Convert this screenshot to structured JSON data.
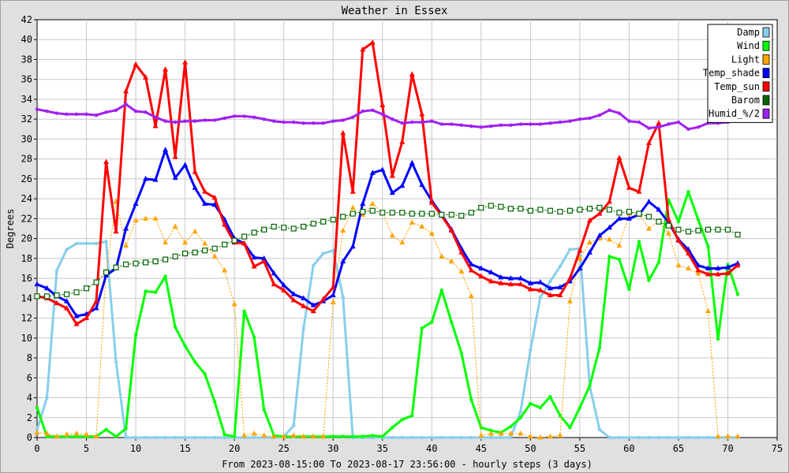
{
  "chart_data": {
    "type": "line",
    "title": "Weather in Essex",
    "xlabel": "From 2023-08-15:00 To 2023-08-17 23:56:00 - hourly steps (3 days)",
    "ylabel": "Degrees",
    "xlim": [
      0,
      75
    ],
    "ylim": [
      0,
      42
    ],
    "x_ticks": [
      0,
      5,
      10,
      15,
      20,
      25,
      30,
      35,
      40,
      45,
      50,
      55,
      60,
      65,
      70,
      75
    ],
    "y_ticks": [
      0,
      2,
      4,
      6,
      8,
      10,
      12,
      14,
      16,
      18,
      20,
      22,
      24,
      26,
      28,
      30,
      32,
      34,
      36,
      38,
      40,
      42
    ],
    "grid": true,
    "legend_position": "top-right",
    "series": [
      {
        "name": "Damp",
        "color": "#87ceeb",
        "marker": "point",
        "dotted": false,
        "width": 3,
        "values": [
          0.8,
          4.0,
          16.8,
          18.9,
          19.5,
          19.5,
          19.5,
          19.7,
          7.6,
          0,
          0,
          0,
          0,
          0,
          0,
          0,
          0,
          0,
          0,
          0,
          0,
          0,
          0,
          0,
          0,
          0.1,
          1.2,
          11.0,
          17.3,
          18.5,
          18.8,
          14.1,
          0,
          0,
          0,
          0,
          0,
          0,
          0,
          0,
          0,
          0,
          0,
          0,
          0,
          0,
          0,
          0,
          0,
          2.6,
          8.8,
          14.1,
          15.7,
          17.2,
          18.9,
          19.0,
          5.2,
          0.8,
          0,
          0,
          0,
          0,
          0,
          0,
          0,
          0,
          0,
          0,
          0,
          0,
          0,
          0
        ]
      },
      {
        "name": "Wind",
        "color": "#00ff00",
        "marker": "point",
        "dotted": false,
        "width": 3,
        "values": [
          3.0,
          0.1,
          0.1,
          0.1,
          0.1,
          0.1,
          0.1,
          0.8,
          0.1,
          0.9,
          10.3,
          14.7,
          14.6,
          16.2,
          11.1,
          9.2,
          7.6,
          6.4,
          3.6,
          0.3,
          0.1,
          12.7,
          10.1,
          2.8,
          0.2,
          0.1,
          0.1,
          0.1,
          0.1,
          0.1,
          0.1,
          0.1,
          0.1,
          0.1,
          0.2,
          0.1,
          1.0,
          1.8,
          2.2,
          11.0,
          11.6,
          14.8,
          11.6,
          8.5,
          3.8,
          1.0,
          0.7,
          0.5,
          1.1,
          2.0,
          3.4,
          3.0,
          4.1,
          2.2,
          1.0,
          3.0,
          5.2,
          9.0,
          18.2,
          17.9,
          14.9,
          19.7,
          15.8,
          17.6,
          23.9,
          21.7,
          24.7,
          21.9,
          19.2,
          9.9,
          17.4,
          14.4
        ]
      },
      {
        "name": "Light",
        "color": "#ffa500",
        "marker": "triangle",
        "dotted": true,
        "width": 1,
        "values": [
          0.5,
          0.4,
          0.1,
          0.3,
          0.4,
          0.3,
          0.1,
          16.7,
          23.7,
          19.3,
          21.8,
          22.0,
          22.0,
          19.6,
          21.2,
          19.6,
          20.7,
          19.5,
          18.2,
          16.8,
          13.4,
          0.2,
          0.4,
          0.2,
          0.1,
          0.1,
          0.2,
          0.1,
          0.1,
          0.1,
          13.6,
          20.8,
          23.1,
          22.4,
          23.5,
          22.6,
          20.3,
          19.6,
          21.6,
          21.2,
          20.5,
          18.2,
          17.7,
          16.7,
          14.2,
          0.2,
          0.4,
          0.4,
          0.4,
          0.4,
          0.1,
          0,
          0.1,
          0.2,
          13.7,
          18.0,
          19.6,
          20.0,
          19.9,
          19.3,
          22.5,
          22.5,
          21.0,
          21.7,
          20.5,
          17.3,
          17.0,
          16.5,
          12.7,
          0.1,
          0.1,
          0.1
        ]
      },
      {
        "name": "Temp_shade",
        "color": "#0000ff",
        "marker": "triangle",
        "dotted": false,
        "width": 3,
        "values": [
          15.4,
          15.0,
          14.2,
          13.7,
          12.2,
          12.4,
          13.0,
          16.3,
          17.0,
          21.0,
          23.5,
          26.0,
          25.9,
          28.9,
          26.1,
          27.4,
          25.1,
          23.5,
          23.4,
          21.9,
          20.0,
          19.5,
          18.1,
          18.0,
          16.5,
          15.3,
          14.4,
          14.0,
          13.3,
          13.7,
          14.3,
          17.7,
          19.2,
          23.5,
          26.6,
          26.9,
          24.6,
          25.3,
          27.6,
          25.4,
          23.8,
          22.4,
          20.9,
          19.0,
          17.4,
          17.0,
          16.6,
          16.1,
          16.0,
          16.0,
          15.5,
          15.6,
          15.0,
          15.1,
          15.7,
          17.0,
          18.6,
          20.3,
          21.1,
          22.0,
          22.0,
          22.4,
          23.7,
          22.9,
          21.6,
          19.9,
          18.9,
          17.3,
          17.0,
          17.0,
          17.1,
          17.5
        ]
      },
      {
        "name": "Temp_sun",
        "color": "#ff0000",
        "marker": "triangle",
        "dotted": false,
        "width": 3,
        "values": [
          14.2,
          14.0,
          13.5,
          13.0,
          11.4,
          12.0,
          13.7,
          27.7,
          20.7,
          34.8,
          37.5,
          36.2,
          31.3,
          37.0,
          28.2,
          37.7,
          26.7,
          24.7,
          24.1,
          21.4,
          19.6,
          19.5,
          17.2,
          17.7,
          15.4,
          14.8,
          13.8,
          13.2,
          12.7,
          13.9,
          15.1,
          30.6,
          24.7,
          39.0,
          39.7,
          33.4,
          26.3,
          29.7,
          36.5,
          32.5,
          23.6,
          22.3,
          20.8,
          18.6,
          16.8,
          16.2,
          15.7,
          15.5,
          15.4,
          15.4,
          14.9,
          14.8,
          14.3,
          14.3,
          16.0,
          18.8,
          21.8,
          22.5,
          23.7,
          28.1,
          25.1,
          24.7,
          29.6,
          31.6,
          21.9,
          19.8,
          18.5,
          16.8,
          16.4,
          16.4,
          16.5,
          17.3
        ]
      },
      {
        "name": "Barom",
        "color": "#006400",
        "marker": "square",
        "dotted": true,
        "width": 1,
        "values": [
          14.2,
          14.2,
          14.3,
          14.4,
          14.6,
          15.0,
          15.6,
          16.6,
          17.1,
          17.4,
          17.5,
          17.6,
          17.7,
          17.9,
          18.2,
          18.5,
          18.6,
          18.8,
          19.0,
          19.4,
          19.8,
          20.2,
          20.6,
          20.9,
          21.2,
          21.1,
          21.0,
          21.2,
          21.5,
          21.7,
          21.9,
          22.2,
          22.5,
          22.7,
          22.8,
          22.6,
          22.6,
          22.6,
          22.5,
          22.5,
          22.5,
          22.4,
          22.4,
          22.3,
          22.6,
          23.1,
          23.3,
          23.2,
          23.0,
          23.0,
          22.8,
          22.9,
          22.8,
          22.7,
          22.8,
          22.9,
          23.0,
          23.1,
          22.9,
          22.6,
          22.7,
          22.5,
          22.2,
          21.7,
          21.3,
          20.9,
          20.7,
          20.8,
          20.9,
          20.9,
          20.9,
          20.4
        ]
      },
      {
        "name": "Humid_%/2",
        "color": "#a020f0",
        "marker": "point",
        "dotted": false,
        "width": 3,
        "values": [
          33.0,
          32.8,
          32.6,
          32.5,
          32.5,
          32.5,
          32.4,
          32.7,
          32.9,
          33.5,
          32.8,
          32.7,
          32.2,
          31.8,
          31.7,
          31.8,
          31.8,
          31.9,
          31.9,
          32.1,
          32.3,
          32.3,
          32.2,
          32.0,
          31.8,
          31.7,
          31.7,
          31.6,
          31.6,
          31.6,
          31.8,
          31.9,
          32.2,
          32.8,
          32.9,
          32.5,
          32.0,
          31.6,
          31.7,
          31.7,
          31.8,
          31.5,
          31.5,
          31.4,
          31.3,
          31.2,
          31.3,
          31.4,
          31.4,
          31.5,
          31.5,
          31.5,
          31.6,
          31.7,
          31.8,
          32.0,
          32.1,
          32.4,
          32.9,
          32.6,
          31.8,
          31.7,
          31.1,
          31.2,
          31.5,
          31.7,
          31.0,
          31.2,
          31.6,
          31.6,
          31.7,
          31.9
        ]
      }
    ]
  }
}
